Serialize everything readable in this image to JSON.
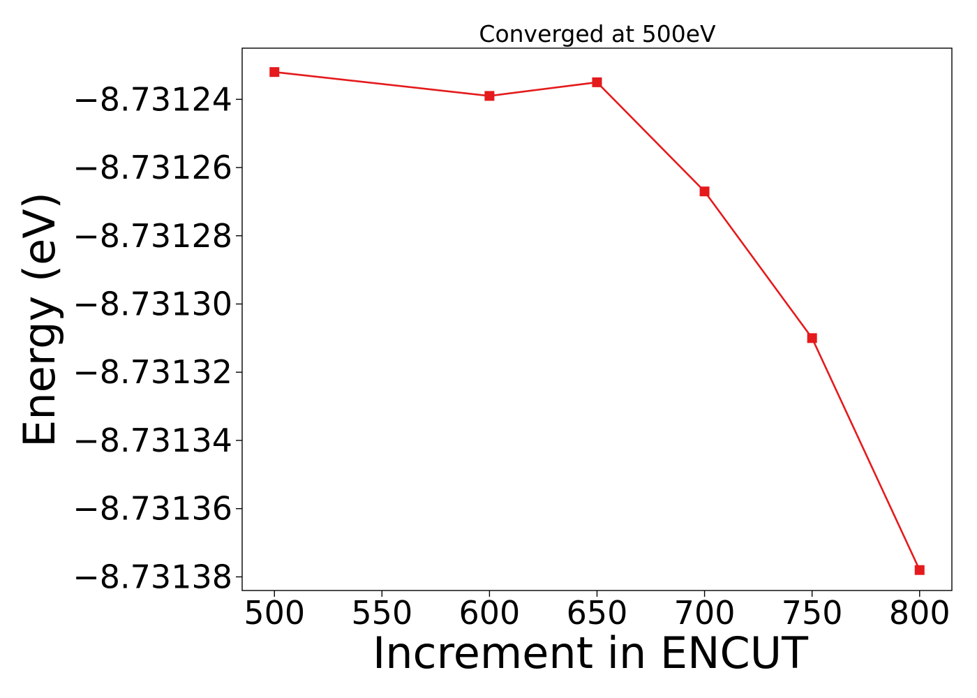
{
  "chart_data": {
    "type": "line",
    "title": "Converged at 500eV",
    "xlabel": "Increment in ENCUT",
    "ylabel": "Energy (eV)",
    "x": [
      500,
      600,
      650,
      700,
      750,
      800
    ],
    "series": [
      {
        "values": [
          -8.731232,
          -8.731239,
          -8.731235,
          -8.731267,
          -8.73131,
          -8.731378
        ],
        "color": "#e41a1c",
        "marker": "square"
      }
    ],
    "xlim": [
      485,
      815
    ],
    "ylim": [
      -8.731384,
      -8.731225
    ],
    "x_ticks": [
      500,
      550,
      600,
      650,
      700,
      750,
      800
    ],
    "x_tick_labels": [
      "500",
      "550",
      "600",
      "650",
      "700",
      "750",
      "800"
    ],
    "y_ticks": [
      -8.73124,
      -8.73126,
      -8.73128,
      -8.7313,
      -8.73132,
      -8.73134,
      -8.73136,
      -8.73138
    ],
    "y_tick_labels": [
      "−8.73124",
      "−8.73126",
      "−8.73128",
      "−8.73130",
      "−8.73132",
      "−8.73134",
      "−8.73136",
      "−8.73138"
    ],
    "grid": false,
    "legend": "none"
  }
}
